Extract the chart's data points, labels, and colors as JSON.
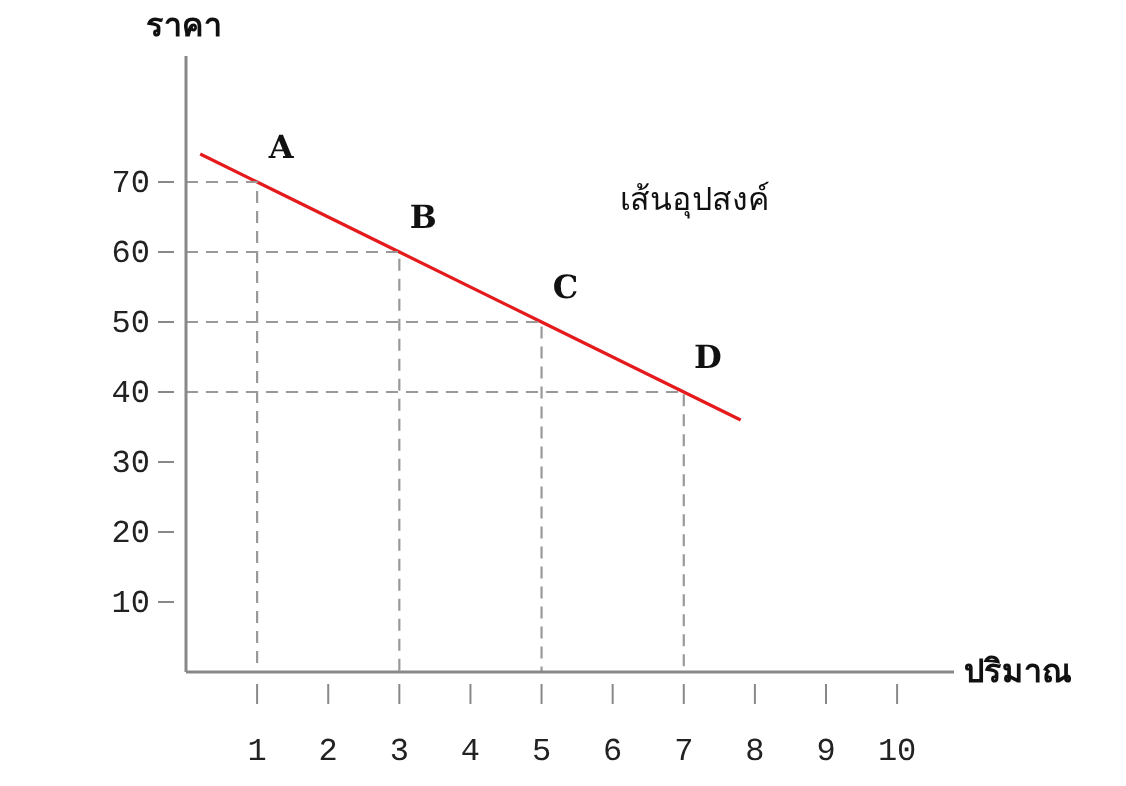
{
  "chart_data": {
    "type": "line",
    "xlabel": "ปริมาณ",
    "ylabel": "ราคา",
    "xlim": [
      0,
      10.8
    ],
    "ylim": [
      0,
      88
    ],
    "xticks": [
      1,
      2,
      3,
      4,
      5,
      6,
      7,
      8,
      9,
      10
    ],
    "yticks": [
      10,
      20,
      30,
      40,
      50,
      60,
      70
    ],
    "grid": false,
    "marker": "none",
    "series": [
      {
        "color": "#e41a1c",
        "x": [
          0.2,
          1,
          3,
          5,
          7,
          7.8
        ],
        "values": [
          74,
          70,
          60,
          50,
          40,
          36
        ],
        "line_style": "solid"
      },
      {
        "color": "#999999",
        "x": [
          0,
          1,
          1
        ],
        "values": [
          70,
          70,
          0
        ],
        "line_style": "dashed"
      },
      {
        "color": "#999999",
        "x": [
          0,
          3,
          3
        ],
        "values": [
          60,
          60,
          0
        ],
        "line_style": "dashed"
      },
      {
        "color": "#999999",
        "x": [
          0,
          5,
          5
        ],
        "values": [
          50,
          50,
          0
        ],
        "line_style": "dashed"
      },
      {
        "color": "#999999",
        "x": [
          0,
          7,
          7
        ],
        "values": [
          40,
          40,
          0
        ],
        "line_style": "dashed"
      }
    ],
    "annotations": [
      {
        "text": "A",
        "x": 1,
        "y": 70
      },
      {
        "text": "B",
        "x": 3,
        "y": 60
      },
      {
        "text": "C",
        "x": 5,
        "y": 50
      },
      {
        "text": "D",
        "x": 7,
        "y": 40
      },
      "เส้นอุปสงค์"
    ]
  }
}
